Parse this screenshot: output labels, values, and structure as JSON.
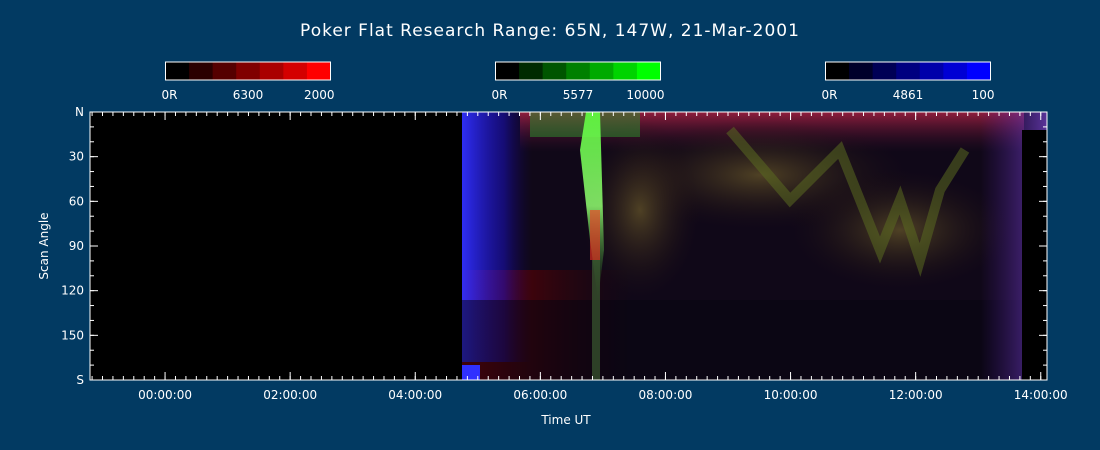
{
  "chart_data": {
    "type": "heatmap",
    "title": "Poker Flat Research Range: 65N, 147W, 21-Mar-2001",
    "xlabel": "Time UT",
    "ylabel": "Scan Angle",
    "x_ticks": [
      "00:00:00",
      "02:00:00",
      "04:00:00",
      "06:00:00",
      "08:00:00",
      "10:00:00",
      "12:00:00",
      "14:00:00"
    ],
    "x_tick_hours": [
      0,
      2,
      4,
      6,
      8,
      10,
      12,
      14
    ],
    "xlim_hours": [
      -1.2,
      14.1
    ],
    "y_ticks": [
      "N",
      "30",
      "60",
      "90",
      "120",
      "150",
      "S"
    ],
    "y_tick_values": [
      0,
      30,
      60,
      90,
      120,
      150,
      180
    ],
    "ylim": [
      0,
      180
    ],
    "data_start_hour": 4.9,
    "colorbars": [
      {
        "name": "6300",
        "min_label": "0R",
        "max_label": "2000",
        "color": "#ff0000",
        "swatches": [
          "#000000",
          "#2a0000",
          "#550000",
          "#800000",
          "#aa0000",
          "#d40000",
          "#ff0000"
        ]
      },
      {
        "name": "5577",
        "min_label": "0R",
        "max_label": "10000",
        "color": "#00ff00",
        "swatches": [
          "#000000",
          "#002a00",
          "#005500",
          "#008000",
          "#00aa00",
          "#00d400",
          "#00ff00"
        ]
      },
      {
        "name": "4861",
        "min_label": "0R",
        "max_label": "100",
        "color": "#0000ff",
        "swatches": [
          "#000000",
          "#00002a",
          "#000055",
          "#000080",
          "#0000aa",
          "#0000d4",
          "#0000ff"
        ]
      }
    ],
    "grid": false,
    "background": "#023a62"
  }
}
